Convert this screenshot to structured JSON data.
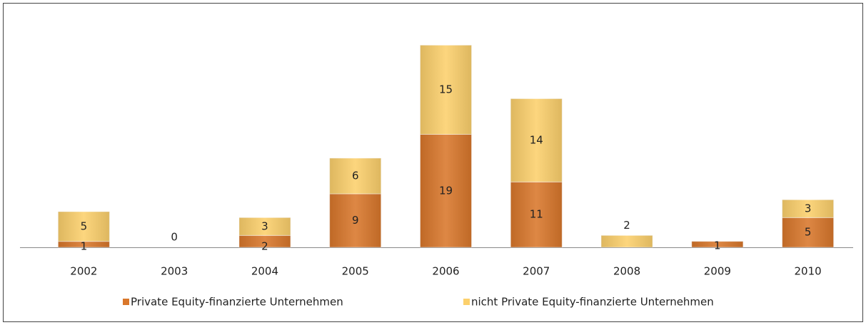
{
  "chart_data": {
    "type": "bar",
    "stacked": true,
    "categories": [
      "2002",
      "2003",
      "2004",
      "2005",
      "2006",
      "2007",
      "2008",
      "2009",
      "2010"
    ],
    "series": [
      {
        "name": "Private Equity-finanzierte Unternehmen",
        "color": "#d9772b",
        "values": [
          1,
          0,
          2,
          9,
          19,
          11,
          0,
          1,
          5
        ]
      },
      {
        "name": "nicht Private Equity-finanzierte Unternehmen",
        "color": "#fcd06c",
        "values": [
          5,
          0,
          3,
          6,
          15,
          14,
          2,
          0,
          3
        ]
      }
    ],
    "ylim": [
      0,
      38
    ],
    "legend": "bottom"
  }
}
